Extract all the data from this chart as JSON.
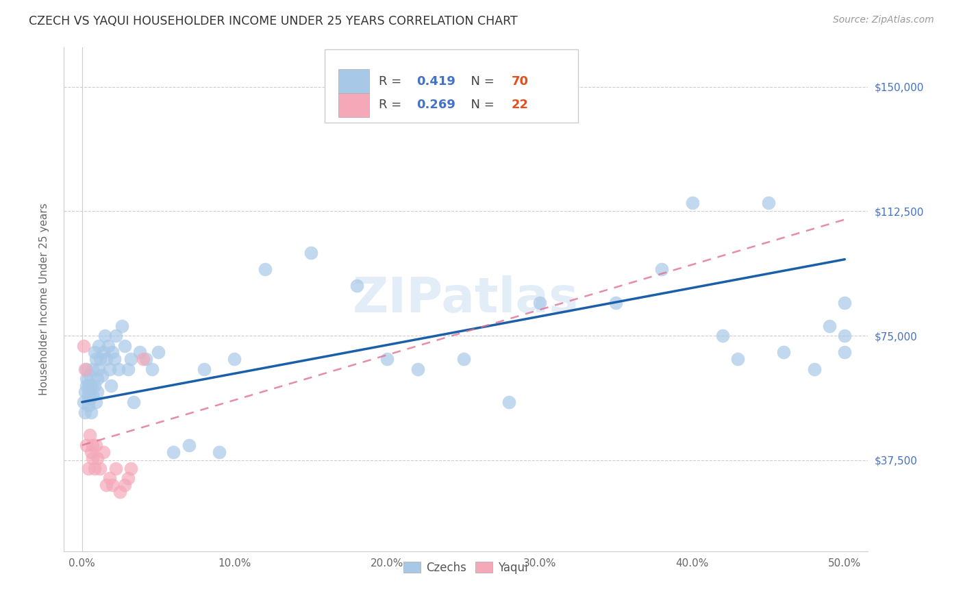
{
  "title": "CZECH VS YAQUI HOUSEHOLDER INCOME UNDER 25 YEARS CORRELATION CHART",
  "source": "Source: ZipAtlas.com",
  "ylabel": "Householder Income Under 25 years",
  "ytick_labels": [
    "$37,500",
    "$75,000",
    "$112,500",
    "$150,000"
  ],
  "ytick_vals": [
    37500,
    75000,
    112500,
    150000
  ],
  "xtick_labels": [
    "0.0%",
    "10.0%",
    "20.0%",
    "30.0%",
    "40.0%",
    "50.0%"
  ],
  "xtick_vals": [
    0.0,
    0.1,
    0.2,
    0.3,
    0.4,
    0.5
  ],
  "ylim": [
    10000,
    162000
  ],
  "xlim": [
    -0.012,
    0.515
  ],
  "watermark": "ZIPatlas",
  "czech_color": "#a8c8e8",
  "yaqui_color": "#f4a8b8",
  "czech_line_color": "#1a5fa8",
  "yaqui_line_color": "#e07090",
  "czech_R": 0.419,
  "yaqui_R": 0.269,
  "czech_N": 70,
  "yaqui_N": 22,
  "czech_x": [
    0.001,
    0.002,
    0.002,
    0.003,
    0.003,
    0.003,
    0.004,
    0.004,
    0.004,
    0.005,
    0.005,
    0.005,
    0.006,
    0.006,
    0.007,
    0.007,
    0.008,
    0.008,
    0.009,
    0.009,
    0.01,
    0.01,
    0.011,
    0.011,
    0.012,
    0.013,
    0.014,
    0.015,
    0.016,
    0.017,
    0.018,
    0.019,
    0.02,
    0.021,
    0.022,
    0.024,
    0.026,
    0.028,
    0.03,
    0.032,
    0.034,
    0.038,
    0.042,
    0.046,
    0.05,
    0.06,
    0.07,
    0.08,
    0.09,
    0.1,
    0.12,
    0.15,
    0.18,
    0.2,
    0.22,
    0.25,
    0.28,
    0.3,
    0.35,
    0.38,
    0.4,
    0.42,
    0.43,
    0.45,
    0.46,
    0.48,
    0.49,
    0.5,
    0.5,
    0.5
  ],
  "czech_y": [
    55000,
    58000,
    52000,
    60000,
    65000,
    62000,
    57000,
    54000,
    60000,
    56000,
    63000,
    58000,
    52000,
    60000,
    65000,
    57000,
    70000,
    60000,
    55000,
    68000,
    62000,
    58000,
    72000,
    65000,
    68000,
    63000,
    70000,
    75000,
    68000,
    72000,
    65000,
    60000,
    70000,
    68000,
    75000,
    65000,
    78000,
    72000,
    65000,
    68000,
    55000,
    70000,
    68000,
    65000,
    70000,
    40000,
    42000,
    65000,
    40000,
    68000,
    95000,
    100000,
    90000,
    68000,
    65000,
    68000,
    55000,
    85000,
    85000,
    95000,
    115000,
    75000,
    68000,
    115000,
    70000,
    65000,
    78000,
    85000,
    75000,
    70000
  ],
  "yaqui_x": [
    0.001,
    0.002,
    0.003,
    0.004,
    0.005,
    0.006,
    0.007,
    0.007,
    0.008,
    0.009,
    0.01,
    0.012,
    0.014,
    0.016,
    0.018,
    0.02,
    0.022,
    0.025,
    0.028,
    0.03,
    0.032,
    0.04
  ],
  "yaqui_y": [
    72000,
    65000,
    42000,
    35000,
    45000,
    40000,
    38000,
    42000,
    35000,
    42000,
    38000,
    35000,
    40000,
    30000,
    32000,
    30000,
    35000,
    28000,
    30000,
    32000,
    35000,
    68000
  ],
  "czech_line_x0": 0.0,
  "czech_line_y0": 55000,
  "czech_line_x1": 0.5,
  "czech_line_y1": 98000,
  "yaqui_line_x0": 0.0,
  "yaqui_line_y0": 42000,
  "yaqui_line_x1": 0.5,
  "yaqui_line_y1": 110000
}
